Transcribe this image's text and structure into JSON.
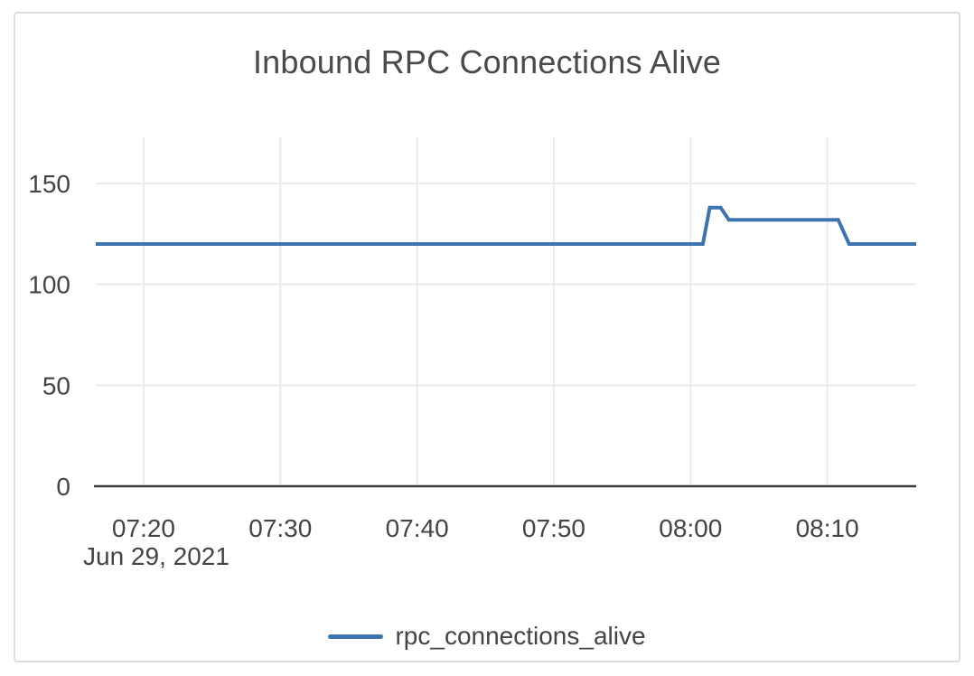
{
  "chart_data": {
    "type": "line",
    "title": "Inbound RPC Connections Alive",
    "legend_position": "bottom-center",
    "series": [
      {
        "name": "rpc_connections_alive",
        "color": "#3d74b0",
        "points": [
          {
            "time": "07:16:30",
            "t": 16.5,
            "value": 120
          },
          {
            "time": "08:00:54",
            "t": 60.9,
            "value": 120
          },
          {
            "time": "08:01:24",
            "t": 61.4,
            "value": 138
          },
          {
            "time": "08:02:12",
            "t": 62.2,
            "value": 138
          },
          {
            "time": "08:02:48",
            "t": 62.8,
            "value": 132
          },
          {
            "time": "08:10:48",
            "t": 70.8,
            "value": 132
          },
          {
            "time": "08:11:36",
            "t": 71.6,
            "value": 120
          },
          {
            "time": "08:16:30",
            "t": 76.5,
            "value": 120
          }
        ]
      }
    ],
    "x_axis": {
      "date_label": "Jun 29, 2021",
      "ticks": [
        {
          "label": "07:20",
          "t": 20
        },
        {
          "label": "07:30",
          "t": 30
        },
        {
          "label": "07:40",
          "t": 40
        },
        {
          "label": "07:50",
          "t": 50
        },
        {
          "label": "08:00",
          "t": 60
        },
        {
          "label": "08:10",
          "t": 70
        }
      ],
      "range_minutes_after_0700": [
        16.5,
        76.5
      ]
    },
    "y_axis": {
      "ticks": [
        0,
        50,
        100,
        150
      ],
      "range": [
        0,
        173
      ],
      "grid": true
    }
  },
  "colors": {
    "line": "#3d74b0",
    "grid": "#ebebeb",
    "axis": "#3c3c3c",
    "tick_text": "#444444",
    "title_text": "#4a4a4a",
    "card_border": "#dcdcdc",
    "background": "#ffffff"
  }
}
